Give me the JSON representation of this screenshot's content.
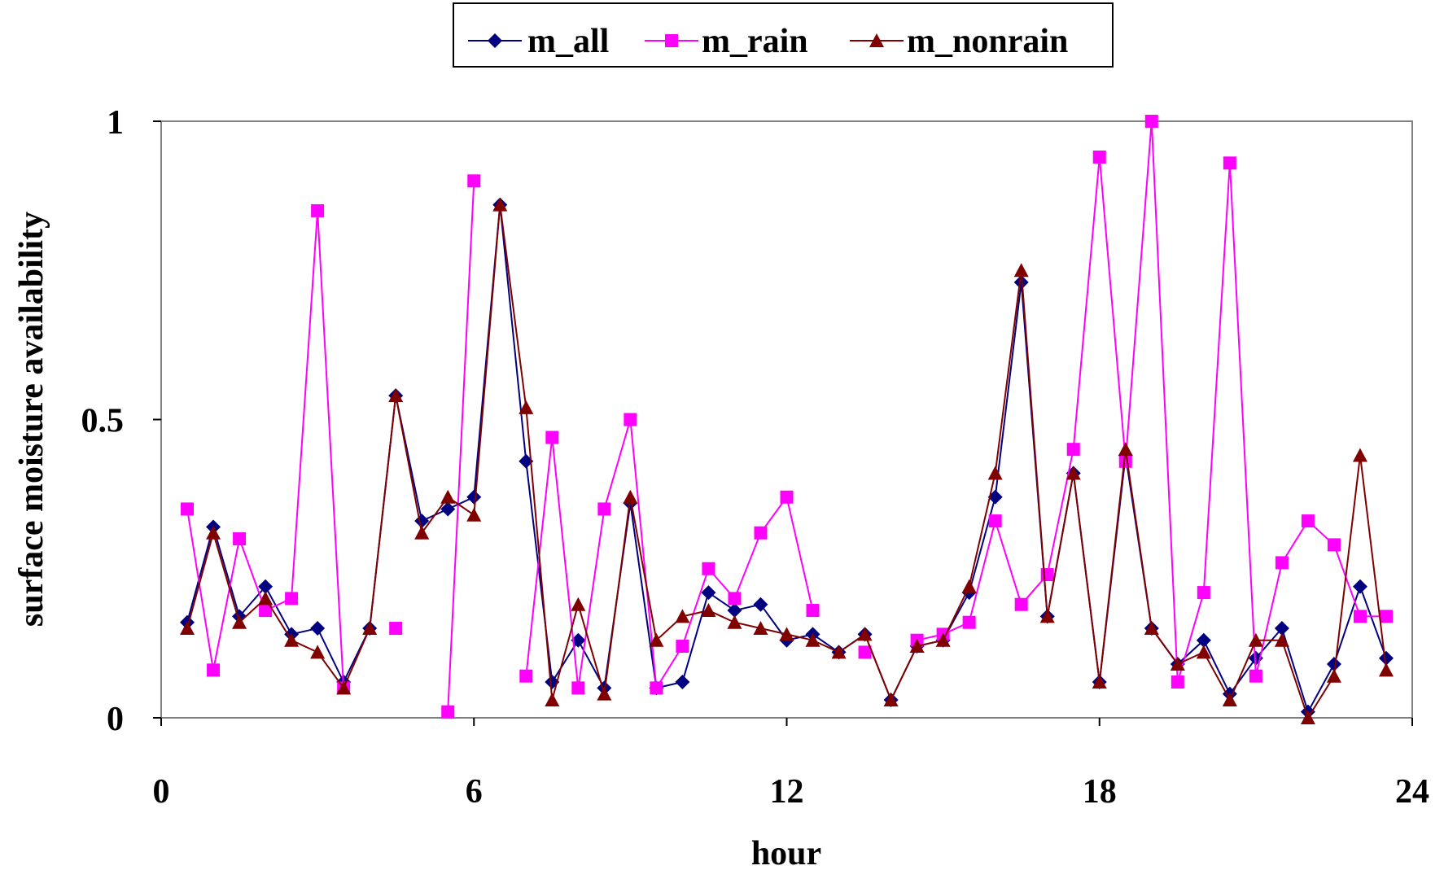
{
  "chart_data": {
    "type": "line",
    "title": "",
    "xlabel": "hour",
    "ylabel": "surface moisture availability",
    "xlim": [
      0,
      24
    ],
    "ylim": [
      0,
      1
    ],
    "x_ticks": [
      "0",
      "6",
      "12",
      "18",
      "24"
    ],
    "y_ticks": [
      "0",
      "0.5",
      "1"
    ],
    "grid": false,
    "legend_position": "top-center",
    "x": [
      0.5,
      1.0,
      1.5,
      2.0,
      2.5,
      3.0,
      3.5,
      4.0,
      4.5,
      5.0,
      5.5,
      6.0,
      6.5,
      7.0,
      7.5,
      8.0,
      8.5,
      9.0,
      9.5,
      10.0,
      10.5,
      11.0,
      11.5,
      12.0,
      12.5,
      13.0,
      13.5,
      14.0,
      14.5,
      15.0,
      15.5,
      16.0,
      16.5,
      17.0,
      17.5,
      18.0,
      18.5,
      19.0,
      19.5,
      20.0,
      20.5,
      21.0,
      21.5,
      22.0,
      22.5,
      23.0,
      23.5
    ],
    "series": [
      {
        "name": "m_all",
        "color": "#000080",
        "marker": "diamond",
        "values": [
          0.16,
          0.32,
          0.17,
          0.22,
          0.14,
          0.15,
          0.06,
          0.15,
          0.54,
          0.33,
          0.35,
          0.37,
          0.86,
          0.43,
          0.06,
          0.13,
          0.05,
          0.36,
          0.05,
          0.06,
          0.21,
          0.18,
          0.19,
          0.13,
          0.14,
          0.11,
          0.14,
          0.03,
          0.12,
          0.13,
          0.21,
          0.37,
          0.73,
          0.17,
          0.41,
          0.06,
          0.44,
          0.15,
          0.09,
          0.13,
          0.04,
          0.1,
          0.15,
          0.01,
          0.09,
          0.22,
          0.1
        ]
      },
      {
        "name": "m_rain",
        "color": "#ff00ff",
        "marker": "square",
        "values": [
          0.35,
          0.08,
          0.3,
          0.18,
          0.2,
          0.85,
          0.05,
          null,
          0.15,
          null,
          0.01,
          0.9,
          null,
          0.07,
          0.47,
          0.05,
          0.35,
          0.5,
          0.05,
          0.12,
          0.25,
          0.2,
          0.31,
          0.37,
          0.18,
          null,
          0.11,
          null,
          0.13,
          0.14,
          0.16,
          0.33,
          0.19,
          0.24,
          0.45,
          0.94,
          0.43,
          1.0,
          0.06,
          0.21,
          0.93,
          0.07,
          0.26,
          0.33,
          0.29,
          0.17,
          0.17
        ]
      },
      {
        "name": "m_nonrain",
        "color": "#800000",
        "marker": "triangle",
        "values": [
          0.15,
          0.31,
          0.16,
          0.2,
          0.13,
          0.11,
          0.05,
          0.15,
          0.54,
          0.31,
          0.37,
          0.34,
          0.86,
          0.52,
          0.03,
          0.19,
          0.04,
          0.37,
          0.13,
          0.17,
          0.18,
          0.16,
          0.15,
          0.14,
          0.13,
          0.11,
          0.14,
          0.03,
          0.12,
          0.13,
          0.22,
          0.41,
          0.75,
          0.17,
          0.41,
          0.06,
          0.45,
          0.15,
          0.09,
          0.11,
          0.03,
          0.13,
          0.13,
          0.0,
          0.07,
          0.44,
          0.08
        ]
      }
    ]
  }
}
